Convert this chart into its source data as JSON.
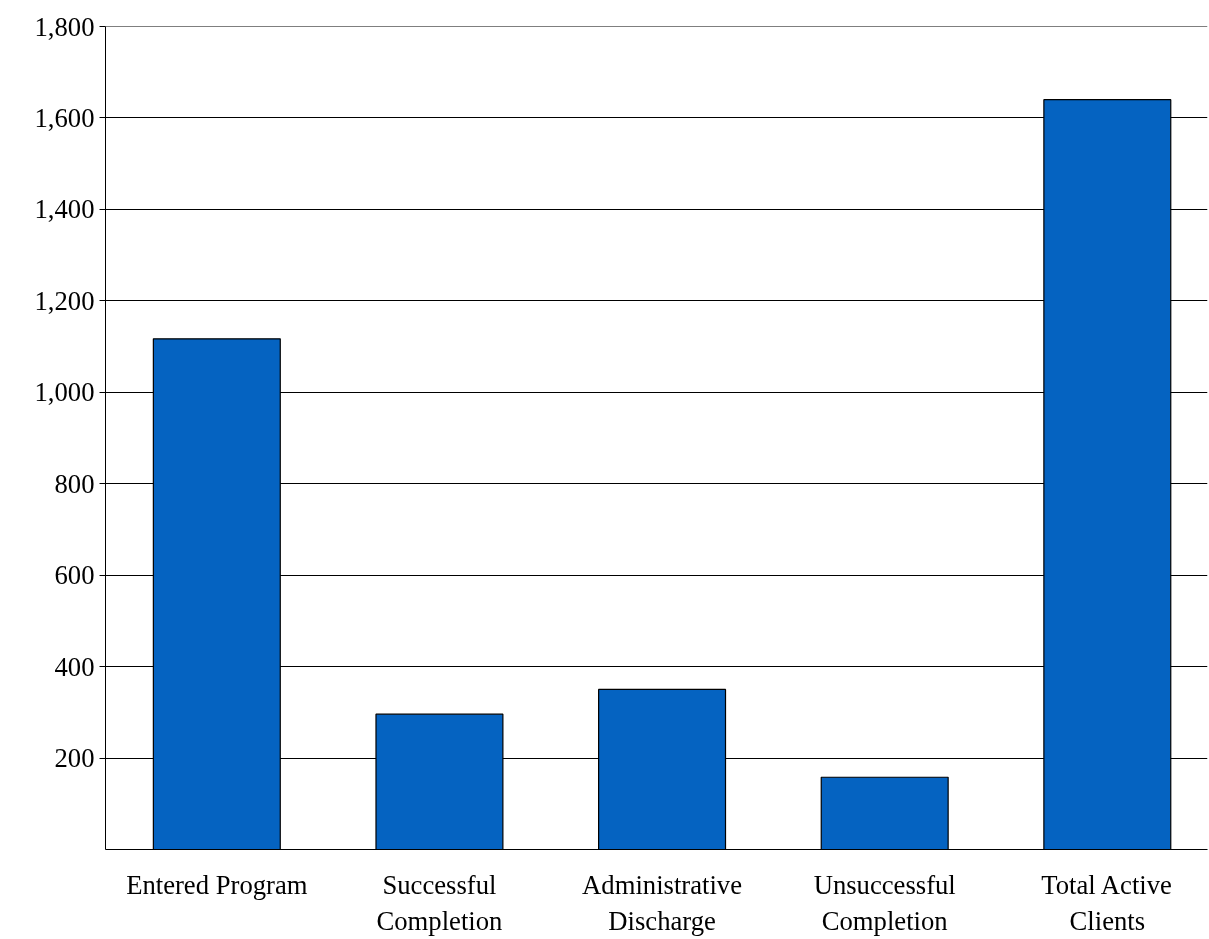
{
  "chart_data": {
    "type": "bar",
    "categories": [
      "Entered Program",
      "Successful\nCompletion",
      "Administrative\nDischarge",
      "Unsuccessful\nCompletion",
      "Total Active\nClients"
    ],
    "values": [
      1117,
      296,
      350,
      158,
      1640
    ],
    "color": "#0563c1",
    "ylim": [
      0,
      1800
    ],
    "yticks": [
      200,
      400,
      600,
      800,
      {
        "value": 1000,
        "label": "1,000"
      },
      {
        "value": 1200,
        "label": "1,200"
      },
      {
        "value": 1400,
        "label": "1,400"
      },
      {
        "value": 1600,
        "label": "1,600"
      },
      {
        "value": 1800,
        "label": "1,800"
      }
    ],
    "grid": "y"
  }
}
